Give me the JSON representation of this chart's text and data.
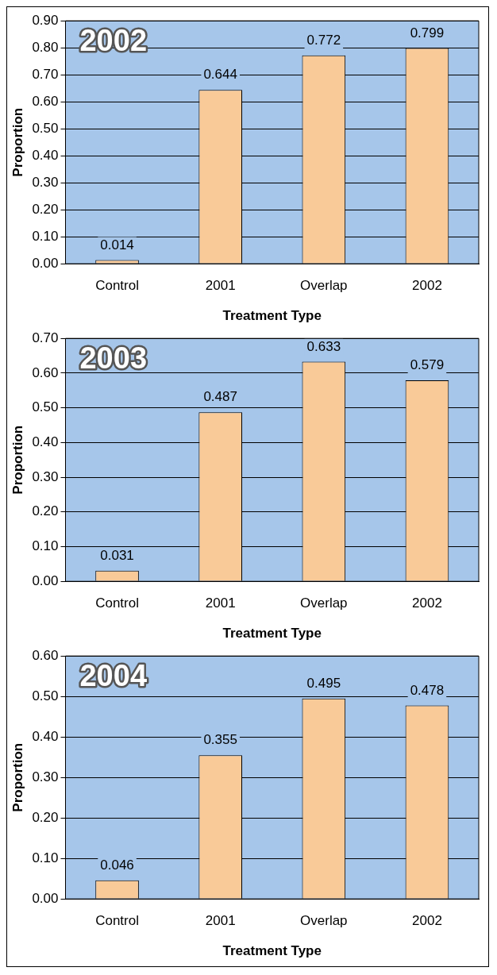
{
  "chart_data": [
    {
      "type": "bar",
      "title": "2002",
      "xlabel": "Treatment Type",
      "ylabel": "Proportion",
      "categories": [
        "Control",
        "2001",
        "Overlap",
        "2002"
      ],
      "values": [
        0.014,
        0.644,
        0.772,
        0.799
      ],
      "color": "#f9ca98",
      "ylim": [
        0,
        0.9
      ],
      "yticks": [
        {
          "value": 0,
          "label": "0.00"
        },
        {
          "value": 0.1,
          "label": "0.10"
        },
        {
          "value": 0.2,
          "label": "0.20"
        },
        {
          "value": 0.3,
          "label": "0.30"
        },
        {
          "value": 0.4,
          "label": "0.40"
        },
        {
          "value": 0.5,
          "label": "0.50"
        },
        {
          "value": 0.6,
          "label": "0.60"
        },
        {
          "value": 0.7,
          "label": "0.70"
        },
        {
          "value": 0.8,
          "label": "0.80"
        },
        {
          "value": 0.9,
          "label": "0.90"
        }
      ],
      "grid": "y",
      "data_labels": true
    },
    {
      "type": "bar",
      "title": "2003",
      "xlabel": "Treatment Type",
      "ylabel": "Proportion",
      "categories": [
        "Control",
        "2001",
        "Overlap",
        "2002"
      ],
      "values": [
        0.031,
        0.487,
        0.633,
        0.579
      ],
      "color": "#f9ca98",
      "ylim": [
        0,
        0.7
      ],
      "yticks": [
        {
          "value": 0,
          "label": "0.00"
        },
        {
          "value": 0.1,
          "label": "0.10"
        },
        {
          "value": 0.2,
          "label": "0.20"
        },
        {
          "value": 0.3,
          "label": "0.30"
        },
        {
          "value": 0.4,
          "label": "0.40"
        },
        {
          "value": 0.5,
          "label": "0.50"
        },
        {
          "value": 0.6,
          "label": "0.60"
        },
        {
          "value": 0.7,
          "label": "0.70"
        }
      ],
      "grid": "y",
      "data_labels": true
    },
    {
      "type": "bar",
      "title": "2004",
      "xlabel": "Treatment Type",
      "ylabel": "Proportion",
      "categories": [
        "Control",
        "2001",
        "Overlap",
        "2002"
      ],
      "values": [
        0.046,
        0.355,
        0.495,
        0.478
      ],
      "color": "#f9ca98",
      "ylim": [
        0,
        0.6
      ],
      "yticks": [
        {
          "value": 0,
          "label": "0.00"
        },
        {
          "value": 0.1,
          "label": "0.10"
        },
        {
          "value": 0.2,
          "label": "0.20"
        },
        {
          "value": 0.3,
          "label": "0.30"
        },
        {
          "value": 0.4,
          "label": "0.40"
        },
        {
          "value": 0.5,
          "label": "0.50"
        },
        {
          "value": 0.6,
          "label": "0.60"
        }
      ],
      "grid": "y",
      "data_labels": true
    }
  ]
}
